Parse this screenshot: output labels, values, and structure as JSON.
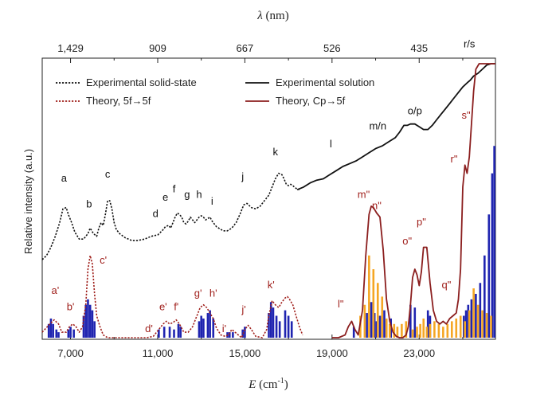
{
  "chart_data": {
    "type": "line",
    "xlabel_symbol": "E",
    "xlabel_unit": " (cm",
    "xlabel_sup": "-1",
    "xlabel_close": ")",
    "x2label_symbol": "λ",
    "x2label_unit": " (nm)",
    "ylabel": "Relative intensity (a.u.)",
    "xlim": [
      5700,
      26500
    ],
    "ylim": [
      0,
      1
    ],
    "x_ticks": [
      {
        "value": 7000,
        "label": "7,000"
      },
      {
        "value": 11000,
        "label": "11,000"
      },
      {
        "value": 15000,
        "label": "15,000"
      },
      {
        "value": 19000,
        "label": "19,000"
      },
      {
        "value": 23000,
        "label": "23,000"
      }
    ],
    "x_minor_ticks": [
      9000,
      13000,
      17000,
      21000,
      25000
    ],
    "top_ticks": [
      {
        "value": 7000,
        "label": "1,429"
      },
      {
        "value": 11000,
        "label": "909"
      },
      {
        "value": 15000,
        "label": "667"
      },
      {
        "value": 19000,
        "label": "526"
      },
      {
        "value": 23000,
        "label": "435"
      }
    ],
    "top_minor_ticks": [
      9000,
      13000,
      17000,
      21000,
      25000
    ],
    "legend": [
      {
        "label": "Experimental solid-state",
        "style": "dotted",
        "color": "#111111"
      },
      {
        "label": "Experimental solution",
        "style": "solid",
        "color": "#111111"
      },
      {
        "label": "Theory, 5f→5f",
        "style": "dotted",
        "color": "#a0201c"
      },
      {
        "label": "Theory, Cp→5f",
        "style": "solid",
        "color": "#8b1e1e"
      }
    ],
    "series": [
      {
        "name": "Experimental solid-state",
        "color": "#111111",
        "style": "dotted",
        "x": [
          5700,
          5900,
          6100,
          6300,
          6500,
          6650,
          6800,
          6900,
          7050,
          7200,
          7400,
          7600,
          7800,
          7900,
          8050,
          8200,
          8300,
          8400,
          8500,
          8600,
          8700,
          8800,
          8900,
          9000,
          9100,
          9250,
          9500,
          9800,
          10100,
          10400,
          10700,
          11000,
          11200,
          11350,
          11500,
          11600,
          11700,
          11800,
          11900,
          12000,
          12100,
          12200,
          12300,
          12400,
          12500,
          12600,
          12700,
          12800,
          12900,
          13000,
          13100,
          13200,
          13300,
          13400,
          13500,
          13600,
          13700,
          13800,
          14000,
          14200,
          14400,
          14600,
          14800,
          14950,
          15100,
          15300,
          15500,
          15700,
          15900,
          16100,
          16250,
          16400,
          16550,
          16700,
          16800,
          16900,
          17000,
          17100,
          17200,
          17350,
          17500
        ],
        "y": [
          0.285,
          0.3,
          0.33,
          0.37,
          0.42,
          0.47,
          0.475,
          0.45,
          0.42,
          0.385,
          0.36,
          0.36,
          0.38,
          0.4,
          0.38,
          0.37,
          0.4,
          0.42,
          0.41,
          0.45,
          0.5,
          0.5,
          0.47,
          0.42,
          0.395,
          0.38,
          0.365,
          0.355,
          0.355,
          0.36,
          0.37,
          0.375,
          0.39,
          0.405,
          0.41,
          0.4,
          0.42,
          0.44,
          0.455,
          0.45,
          0.44,
          0.42,
          0.415,
          0.425,
          0.44,
          0.43,
          0.42,
          0.43,
          0.44,
          0.445,
          0.44,
          0.43,
          0.435,
          0.44,
          0.425,
          0.415,
          0.405,
          0.4,
          0.39,
          0.39,
          0.4,
          0.42,
          0.455,
          0.485,
          0.49,
          0.475,
          0.47,
          0.48,
          0.5,
          0.52,
          0.55,
          0.58,
          0.6,
          0.595,
          0.58,
          0.56,
          0.555,
          0.56,
          0.555,
          0.545,
          0.54
        ]
      },
      {
        "name": "Experimental solution",
        "color": "#111111",
        "style": "solid",
        "x": [
          17400,
          17700,
          18000,
          18300,
          18600,
          18900,
          19200,
          19500,
          19800,
          20100,
          20400,
          20700,
          21000,
          21300,
          21600,
          21900,
          22100,
          22300,
          22450,
          22600,
          22800,
          23000,
          23200,
          23400,
          23600,
          23800,
          24000,
          24200,
          24400,
          24600,
          24800,
          25000,
          25200,
          25350,
          25500,
          25700,
          25900,
          26100,
          26300,
          26500
        ],
        "y": [
          0.54,
          0.55,
          0.565,
          0.575,
          0.58,
          0.595,
          0.61,
          0.625,
          0.635,
          0.645,
          0.66,
          0.675,
          0.69,
          0.7,
          0.715,
          0.73,
          0.75,
          0.775,
          0.775,
          0.78,
          0.78,
          0.77,
          0.76,
          0.76,
          0.775,
          0.795,
          0.815,
          0.835,
          0.855,
          0.875,
          0.895,
          0.915,
          0.93,
          0.94,
          0.955,
          0.965,
          0.98,
          0.995,
          1.0,
          1.0
        ]
      },
      {
        "name": "Theory, 5f→5f",
        "color": "#a0201c",
        "style": "dotted",
        "x": [
          5700,
          6050,
          6250,
          6450,
          6600,
          6800,
          6950,
          7100,
          7250,
          7400,
          7550,
          7700,
          7800,
          7900,
          8000,
          8100,
          8200,
          8350,
          8500,
          8700,
          9000,
          9500,
          10000,
          10500,
          10800,
          10950,
          11100,
          11250,
          11400,
          11550,
          11700,
          11850,
          12000,
          12200,
          12400,
          12600,
          12800,
          12950,
          13100,
          13250,
          13400,
          13550,
          13700,
          13900,
          14100,
          14250,
          14400,
          14550,
          14700,
          14850,
          15000,
          15150,
          15300,
          15500,
          15800,
          16000,
          16100,
          16250,
          16400,
          16550,
          16700,
          16850,
          16950,
          17050,
          17200,
          17350,
          17500,
          17650
        ],
        "y": [
          0.02,
          0.05,
          0.065,
          0.05,
          0.02,
          0.02,
          0.04,
          0.05,
          0.04,
          0.02,
          0.04,
          0.12,
          0.25,
          0.3,
          0.27,
          0.16,
          0.08,
          0.04,
          0.01,
          0.0,
          0.0,
          0.0,
          0.0,
          0.0,
          0.005,
          0.02,
          0.035,
          0.05,
          0.06,
          0.05,
          0.055,
          0.065,
          0.05,
          0.02,
          0.02,
          0.04,
          0.08,
          0.11,
          0.12,
          0.11,
          0.09,
          0.07,
          0.035,
          0.01,
          0.005,
          0.01,
          0.03,
          0.02,
          0.01,
          0.0,
          0.03,
          0.045,
          0.03,
          0.005,
          0.0,
          0.03,
          0.08,
          0.135,
          0.12,
          0.11,
          0.13,
          0.145,
          0.15,
          0.14,
          0.12,
          0.08,
          0.04,
          0.01
        ]
      },
      {
        "name": "Theory, Cp→5f",
        "color": "#8b1e1e",
        "style": "solid",
        "x": [
          19000,
          19300,
          19600,
          19750,
          19900,
          20050,
          20200,
          20400,
          20550,
          20700,
          20800,
          20900,
          21050,
          21200,
          21350,
          21500,
          21650,
          21800,
          21950,
          22100,
          22250,
          22400,
          22500,
          22600,
          22700,
          22800,
          22900,
          23000,
          23100,
          23200,
          23350,
          23500,
          23650,
          23800,
          23950,
          24100,
          24250,
          24400,
          24550,
          24700,
          24800,
          24900,
          25000,
          25100,
          25200,
          25300,
          25400,
          25500,
          25600,
          25750,
          25900,
          26050,
          26200,
          26350,
          26500
        ],
        "y": [
          0.0,
          0.0,
          0.01,
          0.04,
          0.06,
          0.03,
          0.01,
          0.1,
          0.3,
          0.45,
          0.48,
          0.475,
          0.455,
          0.44,
          0.32,
          0.14,
          0.06,
          0.02,
          0.005,
          0.0,
          0.0,
          0.01,
          0.04,
          0.12,
          0.22,
          0.25,
          0.23,
          0.19,
          0.24,
          0.33,
          0.33,
          0.2,
          0.1,
          0.06,
          0.05,
          0.06,
          0.05,
          0.07,
          0.08,
          0.09,
          0.14,
          0.25,
          0.55,
          0.63,
          0.6,
          0.66,
          0.78,
          0.9,
          0.98,
          1.0,
          1.0,
          1.0,
          1.0,
          1.0,
          1.0
        ]
      }
    ],
    "sticks": [
      {
        "name": "blue",
        "color": "#1f24b0",
        "x": [
          6000,
          6100,
          6200,
          6350,
          6450,
          6900,
          7000,
          7150,
          7600,
          7700,
          7800,
          7900,
          8000,
          8100,
          11050,
          11300,
          11550,
          11750,
          11950,
          12050,
          12900,
          13000,
          13100,
          13300,
          13400,
          13550,
          14200,
          14300,
          14450,
          14900,
          15000,
          16100,
          16200,
          16300,
          16450,
          16600,
          16850,
          17000,
          17150,
          20000,
          20600,
          20800,
          20950,
          21050,
          21200,
          21400,
          21500,
          21700,
          22600,
          22800,
          23400,
          23500,
          25050,
          25150,
          25250,
          25400,
          25600,
          25800,
          26000,
          26200,
          26350,
          26450
        ],
        "y": [
          0.05,
          0.07,
          0.05,
          0.03,
          0.02,
          0.03,
          0.04,
          0.03,
          0.08,
          0.12,
          0.14,
          0.12,
          0.1,
          0.06,
          0.03,
          0.04,
          0.04,
          0.03,
          0.05,
          0.04,
          0.06,
          0.08,
          0.07,
          0.09,
          0.1,
          0.07,
          0.02,
          0.02,
          0.02,
          0.03,
          0.04,
          0.09,
          0.13,
          0.11,
          0.08,
          0.06,
          0.1,
          0.08,
          0.06,
          0.04,
          0.09,
          0.13,
          0.09,
          0.06,
          0.08,
          0.1,
          0.06,
          0.07,
          0.12,
          0.11,
          0.1,
          0.08,
          0.08,
          0.1,
          0.12,
          0.14,
          0.16,
          0.2,
          0.3,
          0.45,
          0.6,
          0.7
        ]
      },
      {
        "name": "orange",
        "color": "#f5a623",
        "x": [
          20300,
          20500,
          20700,
          20900,
          21100,
          21300,
          21500,
          21650,
          21850,
          22000,
          22200,
          22400,
          22700,
          22900,
          23050,
          23200,
          23350,
          23500,
          23700,
          23900,
          24100,
          24300,
          24500,
          24700,
          24900,
          25100,
          25300,
          25500,
          25700,
          25900,
          26100,
          26300
        ],
        "y": [
          0.08,
          0.12,
          0.3,
          0.25,
          0.2,
          0.15,
          0.07,
          0.05,
          0.05,
          0.04,
          0.05,
          0.06,
          0.03,
          0.04,
          0.05,
          0.07,
          0.04,
          0.05,
          0.06,
          0.05,
          0.04,
          0.05,
          0.06,
          0.07,
          0.08,
          0.06,
          0.1,
          0.18,
          0.12,
          0.1,
          0.09,
          0.08
        ]
      }
    ],
    "peak_labels_solid": [
      {
        "text": "a",
        "x": 6700,
        "y": 0.57
      },
      {
        "text": "b",
        "x": 7850,
        "y": 0.475
      },
      {
        "text": "c",
        "x": 8700,
        "y": 0.585
      },
      {
        "text": "d",
        "x": 10900,
        "y": 0.44
      },
      {
        "text": "e",
        "x": 11350,
        "y": 0.5
      },
      {
        "text": "f",
        "x": 11750,
        "y": 0.53
      },
      {
        "text": "g",
        "x": 12350,
        "y": 0.51
      },
      {
        "text": "h",
        "x": 12900,
        "y": 0.51
      },
      {
        "text": "i",
        "x": 13500,
        "y": 0.485
      },
      {
        "text": "j",
        "x": 14900,
        "y": 0.575
      },
      {
        "text": "k",
        "x": 16400,
        "y": 0.665
      },
      {
        "text": "l",
        "x": 18950,
        "y": 0.695
      },
      {
        "text": "m/n",
        "x": 21100,
        "y": 0.76
      },
      {
        "text": "o/p",
        "x": 22800,
        "y": 0.815
      },
      {
        "text": "r/s",
        "x": 25300,
        "y": 1.06
      }
    ],
    "peak_labels_theory": [
      {
        "text": "a'",
        "x": 6300,
        "y": 0.16
      },
      {
        "text": "b'",
        "x": 7000,
        "y": 0.1
      },
      {
        "text": "c'",
        "x": 8500,
        "y": 0.27
      },
      {
        "text": "d'",
        "x": 10600,
        "y": 0.02
      },
      {
        "text": "e'",
        "x": 11250,
        "y": 0.1
      },
      {
        "text": "f'",
        "x": 11850,
        "y": 0.1
      },
      {
        "text": "g'",
        "x": 12850,
        "y": 0.15
      },
      {
        "text": "h'",
        "x": 13550,
        "y": 0.15
      },
      {
        "text": "i'",
        "x": 14050,
        "y": 0.02
      },
      {
        "text": "j'",
        "x": 14950,
        "y": 0.09
      },
      {
        "text": "k'",
        "x": 16200,
        "y": 0.18
      },
      {
        "text": "l\"",
        "x": 19400,
        "y": 0.11
      },
      {
        "text": "m\"",
        "x": 20450,
        "y": 0.51
      },
      {
        "text": "n\"",
        "x": 21050,
        "y": 0.47
      },
      {
        "text": "o\"",
        "x": 22450,
        "y": 0.34
      },
      {
        "text": "p\"",
        "x": 23100,
        "y": 0.41
      },
      {
        "text": "q\"",
        "x": 24250,
        "y": 0.18
      },
      {
        "text": "r\"",
        "x": 24600,
        "y": 0.64
      },
      {
        "text": "s\"",
        "x": 25150,
        "y": 0.8
      }
    ]
  }
}
